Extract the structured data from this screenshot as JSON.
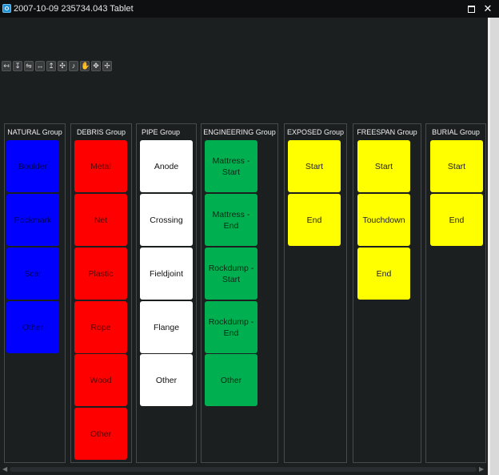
{
  "window": {
    "title": "2007-10-09 235734.043 Tablet",
    "maximize_icon": "maximize-icon",
    "close_label": "✕"
  },
  "toolbar": {
    "icons": [
      "align-left-icon",
      "align-down-icon",
      "spread-icon",
      "align-center-icon",
      "align-up-icon",
      "expand-icon",
      "note-icon",
      "hand-icon",
      "move-icon",
      "move-alt-icon"
    ]
  },
  "groups": [
    {
      "title": "NATURAL Group",
      "color": "#0000ff",
      "items": [
        "Boulder",
        "Pockmark",
        "Scar",
        "Other"
      ]
    },
    {
      "title": "DEBRIS Group",
      "color": "#ff0000",
      "items": [
        "Metal",
        "Net",
        "Plastic",
        "Rope",
        "Wood",
        "Other"
      ]
    },
    {
      "title": "PIPE Group",
      "color": "#ffffff",
      "items": [
        "Anode",
        "Crossing",
        "Fieldjoint",
        "Flange",
        "Other"
      ]
    },
    {
      "title": "ENGINEERING Group",
      "color": "#00b050",
      "items": [
        "Mattress - Start",
        "Mattress - End",
        "Rockdump - Start",
        "Rockdump - End",
        "Other"
      ]
    },
    {
      "title": "EXPOSED Group",
      "color": "#ffff00",
      "items": [
        "Start",
        "End"
      ]
    },
    {
      "title": "FREESPAN Group",
      "color": "#ffff00",
      "items": [
        "Start",
        "Touchdown",
        "End"
      ]
    },
    {
      "title": "BURIAL Group",
      "color": "#ffff00",
      "items": [
        "Start",
        "End"
      ]
    }
  ]
}
